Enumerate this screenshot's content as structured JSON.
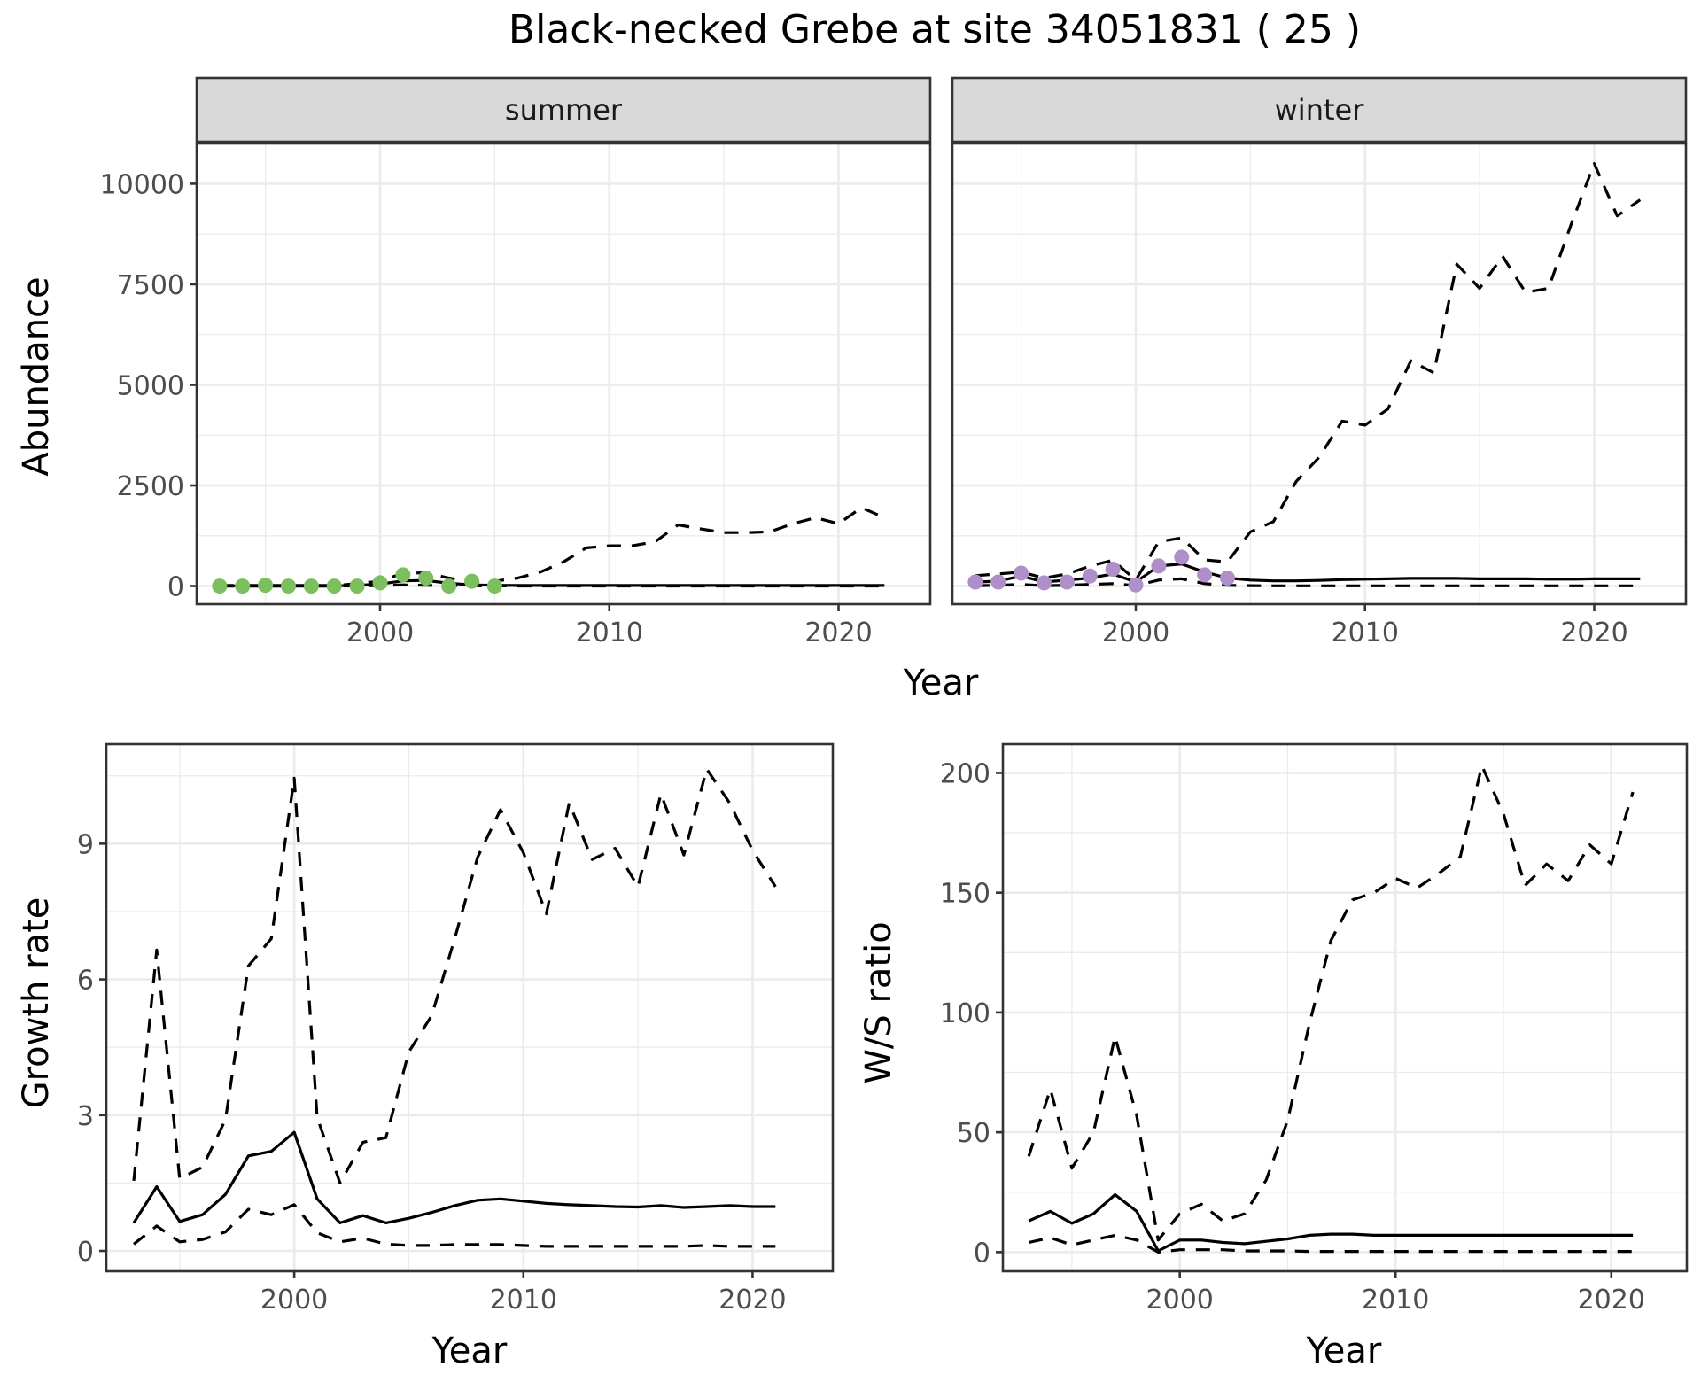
{
  "title": "Black-necked Grebe at site 34051831 ( 25 )",
  "colors": {
    "summer_points": "#7cbf5e",
    "winter_points": "#ae8fca",
    "lines": "#000000",
    "strip_fill": "#d9d9d9"
  },
  "chart_data": [
    {
      "type": "line",
      "facets": [
        "summer",
        "winter"
      ],
      "xlabel": "Year",
      "ylabel": "Abundance",
      "xlim": [
        1992,
        2024
      ],
      "ylim": [
        -450,
        11000
      ],
      "xticks": [
        2000,
        2010,
        2020
      ],
      "yticks": [
        0,
        2500,
        5000,
        7500,
        10000
      ],
      "grid": true,
      "panels": [
        {
          "facet": "summer",
          "x": [
            1993,
            1994,
            1995,
            1996,
            1997,
            1998,
            1999,
            2000,
            2001,
            2002,
            2003,
            2004,
            2005,
            2006,
            2007,
            2008,
            2009,
            2010,
            2011,
            2012,
            2013,
            2014,
            2015,
            2016,
            2017,
            2018,
            2019,
            2020,
            2021,
            2022
          ],
          "series": [
            {
              "style": "solid",
              "values": [
                5,
                5,
                5,
                5,
                5,
                5,
                20,
                50,
                130,
                140,
                70,
                30,
                20,
                15,
                15,
                15,
                15,
                15,
                15,
                15,
                15,
                15,
                15,
                15,
                15,
                15,
                15,
                15,
                15,
                15
              ]
            },
            {
              "style": "dashed-upper",
              "values": [
                15,
                15,
                15,
                15,
                15,
                15,
                60,
                120,
                320,
                330,
                200,
                100,
                120,
                200,
                350,
                600,
                950,
                1000,
                1000,
                1100,
                1520,
                1420,
                1330,
                1330,
                1350,
                1550,
                1700,
                1550,
                1950,
                1700
              ]
            },
            {
              "style": "dashed-lower",
              "values": [
                0,
                0,
                0,
                0,
                0,
                0,
                5,
                10,
                30,
                20,
                10,
                5,
                5,
                2,
                2,
                2,
                2,
                2,
                2,
                2,
                2,
                2,
                2,
                2,
                2,
                2,
                2,
                2,
                2,
                2
              ]
            }
          ],
          "points": {
            "x": [
              1993,
              1994,
              1995,
              1996,
              1997,
              1998,
              1999,
              2000,
              2001,
              2002,
              2003,
              2004,
              2005
            ],
            "y": [
              0,
              0,
              20,
              0,
              0,
              0,
              0,
              80,
              280,
              200,
              0,
              120,
              0
            ]
          }
        },
        {
          "facet": "winter",
          "x": [
            1993,
            1994,
            1995,
            1996,
            1997,
            1998,
            1999,
            2000,
            2001,
            2002,
            2003,
            2004,
            2005,
            2006,
            2007,
            2008,
            2009,
            2010,
            2011,
            2012,
            2013,
            2014,
            2015,
            2016,
            2017,
            2018,
            2019,
            2020,
            2021,
            2022
          ],
          "series": [
            {
              "style": "solid",
              "values": [
                100,
                120,
                250,
                100,
                150,
                200,
                300,
                100,
                500,
                550,
                350,
                200,
                150,
                130,
                130,
                140,
                160,
                170,
                180,
                190,
                190,
                190,
                180,
                180,
                180,
                170,
                170,
                180,
                180,
                180
              ]
            },
            {
              "style": "dashed-upper",
              "values": [
                260,
                300,
                350,
                200,
                300,
                500,
                640,
                150,
                1100,
                1200,
                650,
                600,
                1350,
                1600,
                2600,
                3200,
                4100,
                4000,
                4400,
                5600,
                5300,
                8000,
                7400,
                8200,
                7300,
                7400,
                9000,
                10500,
                9200,
                9600
              ]
            },
            {
              "style": "dashed-lower",
              "values": [
                10,
                20,
                40,
                10,
                20,
                40,
                60,
                10,
                150,
                180,
                60,
                20,
                10,
                5,
                5,
                5,
                5,
                5,
                5,
                5,
                5,
                5,
                5,
                5,
                5,
                5,
                5,
                5,
                5,
                5
              ]
            }
          ],
          "points": {
            "x": [
              1993,
              1994,
              1995,
              1996,
              1997,
              1998,
              1999,
              2000,
              2001,
              2002,
              2003,
              2004
            ],
            "y": [
              100,
              100,
              320,
              80,
              100,
              250,
              420,
              30,
              500,
              720,
              280,
              200
            ]
          }
        }
      ]
    },
    {
      "type": "line",
      "xlabel": "Year",
      "ylabel": "Growth rate",
      "xlim": [
        1991.8,
        2023.5
      ],
      "ylim": [
        -0.45,
        11.2
      ],
      "xticks": [
        2000,
        2010,
        2020
      ],
      "yticks": [
        0,
        3,
        6,
        9
      ],
      "grid": true,
      "x": [
        1993,
        1994,
        1995,
        1996,
        1997,
        1998,
        1999,
        2000,
        2001,
        2002,
        2003,
        2004,
        2005,
        2006,
        2007,
        2008,
        2009,
        2010,
        2011,
        2012,
        2013,
        2014,
        2015,
        2016,
        2017,
        2018,
        2019,
        2020,
        2021
      ],
      "series": [
        {
          "style": "solid",
          "values": [
            0.62,
            1.42,
            0.65,
            0.8,
            1.25,
            2.1,
            2.2,
            2.62,
            1.15,
            0.62,
            0.78,
            0.62,
            0.72,
            0.85,
            1.0,
            1.12,
            1.15,
            1.1,
            1.05,
            1.02,
            1.0,
            0.98,
            0.97,
            1.0,
            0.96,
            0.98,
            1.0,
            0.98,
            0.98
          ]
        },
        {
          "style": "dashed-upper",
          "values": [
            1.55,
            6.65,
            1.6,
            1.85,
            2.9,
            6.3,
            6.9,
            10.45,
            2.95,
            1.5,
            2.4,
            2.5,
            4.4,
            5.2,
            6.9,
            8.7,
            9.75,
            8.8,
            7.45,
            9.9,
            8.65,
            8.9,
            8.05,
            10.1,
            8.75,
            10.65,
            9.9,
            8.85,
            8.05
          ]
        },
        {
          "style": "dashed-lower",
          "values": [
            0.15,
            0.55,
            0.2,
            0.25,
            0.42,
            0.92,
            0.8,
            1.02,
            0.4,
            0.2,
            0.28,
            0.15,
            0.12,
            0.12,
            0.14,
            0.14,
            0.14,
            0.12,
            0.1,
            0.1,
            0.1,
            0.1,
            0.1,
            0.1,
            0.1,
            0.12,
            0.1,
            0.1,
            0.1
          ]
        }
      ]
    },
    {
      "type": "line",
      "xlabel": "Year",
      "ylabel": "W/S ratio",
      "xlim": [
        1991.8,
        2023.5
      ],
      "ylim": [
        -8,
        212
      ],
      "xticks": [
        2000,
        2010,
        2020
      ],
      "yticks": [
        0,
        50,
        100,
        150,
        200
      ],
      "grid": true,
      "x": [
        1993,
        1994,
        1995,
        1996,
        1997,
        1998,
        1999,
        2000,
        2001,
        2002,
        2003,
        2004,
        2005,
        2006,
        2007,
        2008,
        2009,
        2010,
        2011,
        2012,
        2013,
        2014,
        2015,
        2016,
        2017,
        2018,
        2019,
        2020,
        2021
      ],
      "series": [
        {
          "style": "solid",
          "values": [
            13,
            17,
            12,
            16,
            24,
            17,
            0.5,
            5,
            5,
            4,
            3.5,
            4.5,
            5.5,
            7,
            7.5,
            7.5,
            7,
            7,
            7,
            7,
            7,
            7,
            7,
            7,
            7,
            7,
            7,
            7,
            7
          ]
        },
        {
          "style": "dashed-upper",
          "values": [
            40,
            68,
            35,
            50,
            90,
            57,
            5,
            16,
            20,
            13,
            16,
            30,
            55,
            95,
            130,
            147,
            150,
            156,
            152,
            158,
            165,
            203,
            183,
            153,
            162,
            155,
            170,
            162,
            192
          ]
        },
        {
          "style": "dashed-lower",
          "values": [
            4,
            6,
            3,
            5,
            7,
            5,
            0,
            1,
            1,
            1,
            0.5,
            0.5,
            0.5,
            0.3,
            0.3,
            0.3,
            0.3,
            0.3,
            0.3,
            0.3,
            0.3,
            0.3,
            0.3,
            0.3,
            0.3,
            0.3,
            0.3,
            0.3,
            0.3
          ]
        }
      ]
    }
  ]
}
